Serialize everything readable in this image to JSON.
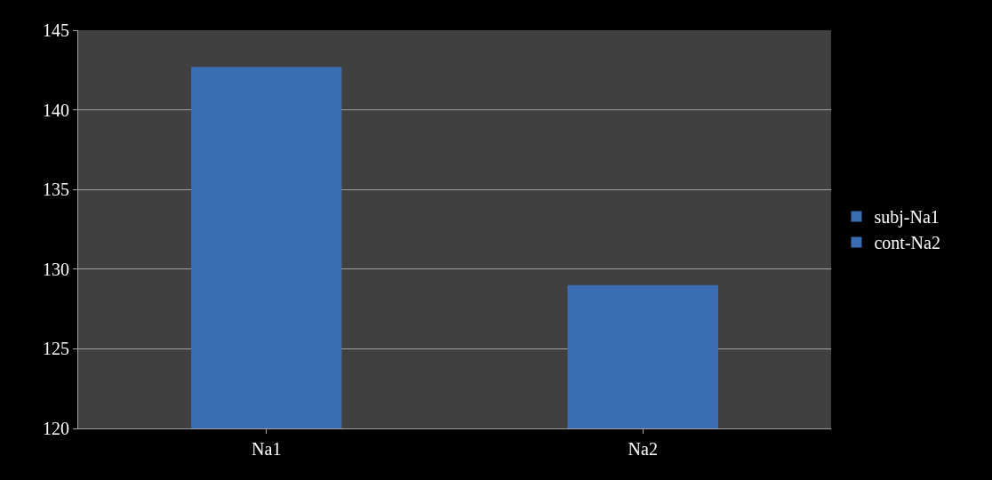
{
  "chart_data": {
    "type": "bar",
    "categories": [
      "Na1",
      "Na2"
    ],
    "series": [
      {
        "name": "subj-Na1",
        "color": "#3a6db3",
        "values": [
          142.7,
          null
        ]
      },
      {
        "name": "cont-Na2",
        "color": "#3a6db3",
        "values": [
          null,
          129.0
        ]
      }
    ],
    "ylim": [
      120,
      145
    ],
    "yticks": [
      120,
      125,
      130,
      135,
      140,
      145
    ],
    "grid": "y",
    "legend": "right"
  }
}
